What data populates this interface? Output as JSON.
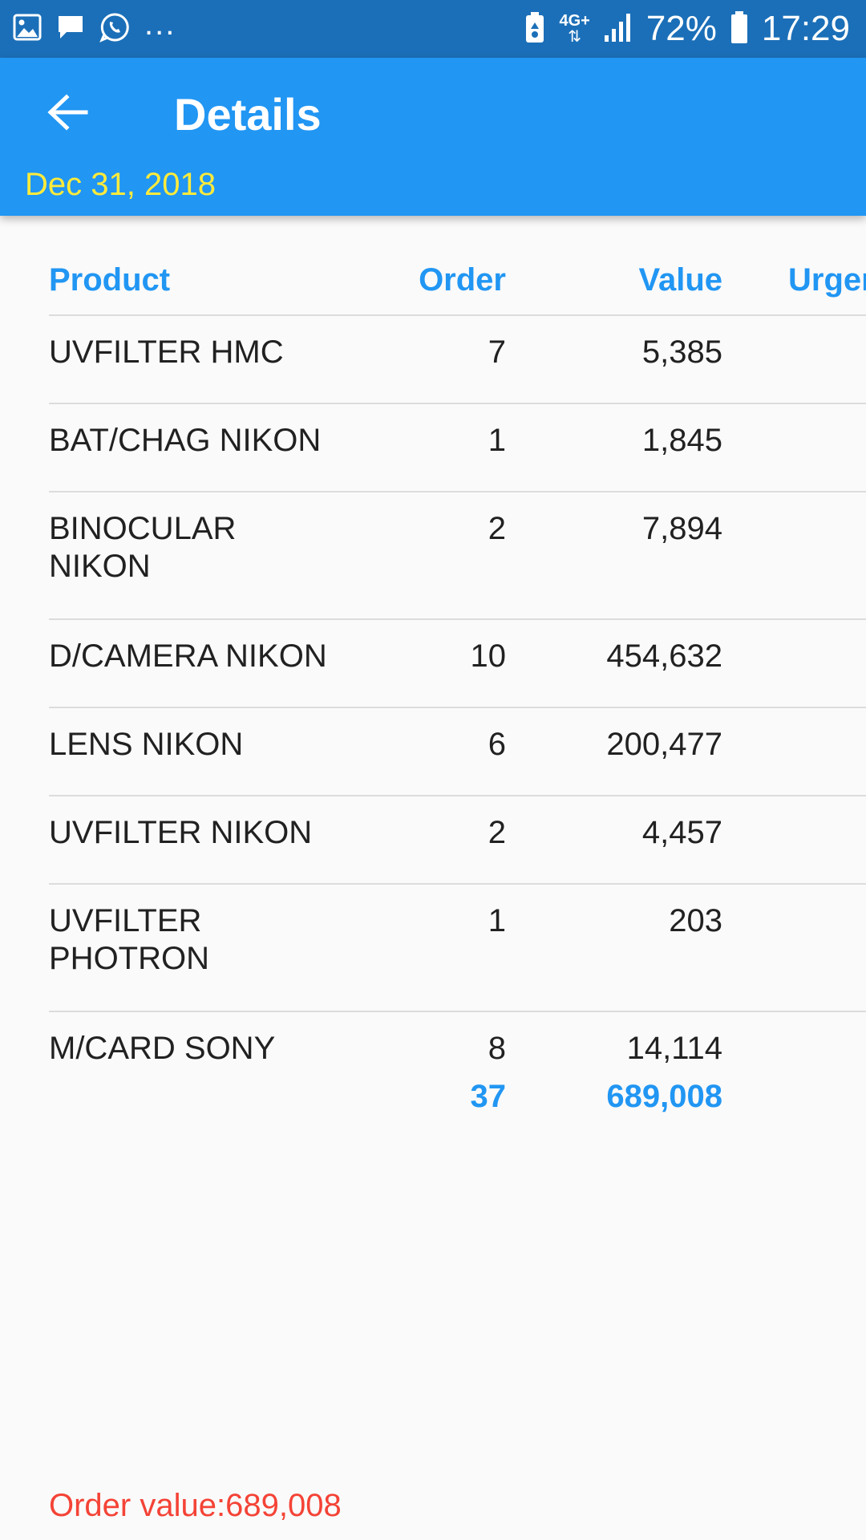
{
  "status_bar": {
    "left_icons": [
      "image-icon",
      "message-icon",
      "whatsapp-icon"
    ],
    "more": "...",
    "network": "4G+",
    "battery": "72%",
    "time": "17:29"
  },
  "app_bar": {
    "title": "Details",
    "date": "Dec 31, 2018"
  },
  "table": {
    "headers": {
      "product": "Product",
      "order": "Order",
      "value": "Value",
      "urgent": "Urgen"
    },
    "rows": [
      {
        "product": "UVFILTER HMC",
        "order": "7",
        "value": "5,385"
      },
      {
        "product": "BAT/CHAG NIKON",
        "order": "1",
        "value": "1,845"
      },
      {
        "product": "BINOCULAR NIKON",
        "order": "2",
        "value": "7,894"
      },
      {
        "product": "D/CAMERA NIKON",
        "order": "10",
        "value": "454,632"
      },
      {
        "product": "LENS NIKON",
        "order": "6",
        "value": "200,477"
      },
      {
        "product": "UVFILTER NIKON",
        "order": "2",
        "value": "4,457"
      },
      {
        "product": "UVFILTER PHOTRON",
        "order": "1",
        "value": "203"
      },
      {
        "product": "M/CARD SONY",
        "order": "8",
        "value": "14,114"
      }
    ],
    "totals": {
      "order": "37",
      "value": "689,008"
    }
  },
  "footer": {
    "order_value": "Order value:689,008"
  },
  "colors": {
    "status_bar": "#1b6fb8",
    "app_bar": "#2196f3",
    "date": "#ffeb3b",
    "accent": "#2196f3",
    "footer": "#f44336"
  }
}
